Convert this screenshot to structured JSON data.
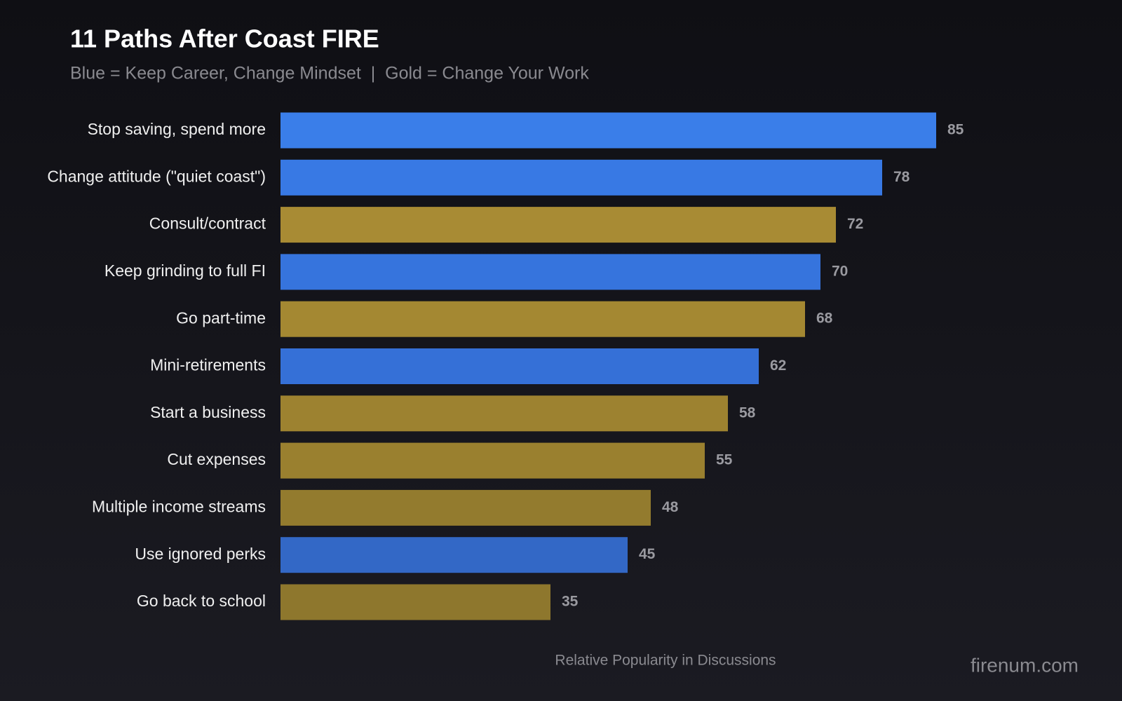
{
  "chart_data": {
    "type": "barh",
    "title": "11 Paths After Coast FIRE",
    "subtitle": "Blue = Keep Career, Change Mindset  |  Gold = Change Your Work",
    "xlabel": "Relative Popularity in Discussions",
    "watermark": "firenum.com",
    "categories": [
      "Stop saving, spend more",
      "Change attitude (\"quiet coast\")",
      "Consult/contract",
      "Keep grinding to full FI",
      "Go part-time",
      "Mini-retirements",
      "Start a business",
      "Cut expenses",
      "Multiple income streams",
      "Use ignored perks",
      "Go back to school"
    ],
    "values": [
      85,
      78,
      72,
      70,
      68,
      62,
      58,
      55,
      48,
      45,
      35
    ],
    "colors": [
      "#3a7ee9",
      "#3879e4",
      "#a88b34",
      "#3674dd",
      "#a48832",
      "#3570d7",
      "#9d8230",
      "#9a802f",
      "#937b2e",
      "#3368c6",
      "#8e772d"
    ],
    "xlim": [
      0,
      100
    ]
  }
}
